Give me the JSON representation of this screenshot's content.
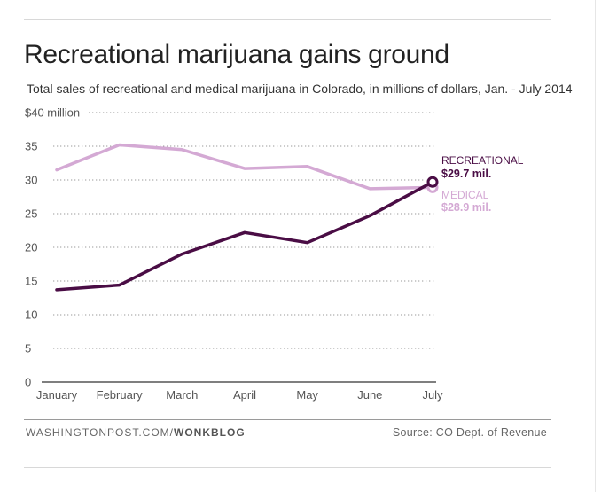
{
  "header": {
    "title": "Recreational marijuana gains ground",
    "subtitle": "Total sales of recreational and medical marijuana in Colorado, in millions of dollars, Jan. - July 2014"
  },
  "footer": {
    "credit_site": "WASHINGTONPOST.COM/",
    "credit_blog": "WONKBLOG",
    "source": "Source: CO Dept. of Revenue"
  },
  "colors": {
    "recreational": "#4a0d45",
    "medical": "#d4a9d4",
    "grid": "#9a9a9a",
    "axis": "#333333"
  },
  "chart_data": {
    "type": "line",
    "categories": [
      "January",
      "February",
      "March",
      "April",
      "May",
      "June",
      "July"
    ],
    "y_tick_labels": [
      "0",
      "5",
      "10",
      "15",
      "20",
      "25",
      "30",
      "35",
      "$40 million"
    ],
    "y_ticks": [
      0,
      5,
      10,
      15,
      20,
      25,
      30,
      35,
      40
    ],
    "ylim": [
      0,
      40
    ],
    "grid": true,
    "series": [
      {
        "name": "RECREATIONAL",
        "end_label": "$29.7 mil.",
        "values": [
          13.7,
          14.4,
          19.0,
          22.2,
          20.7,
          24.7,
          29.7
        ]
      },
      {
        "name": "MEDICAL",
        "end_label": "$28.9 mil.",
        "values": [
          31.5,
          35.2,
          34.5,
          31.7,
          32.0,
          28.7,
          28.9
        ]
      }
    ]
  }
}
